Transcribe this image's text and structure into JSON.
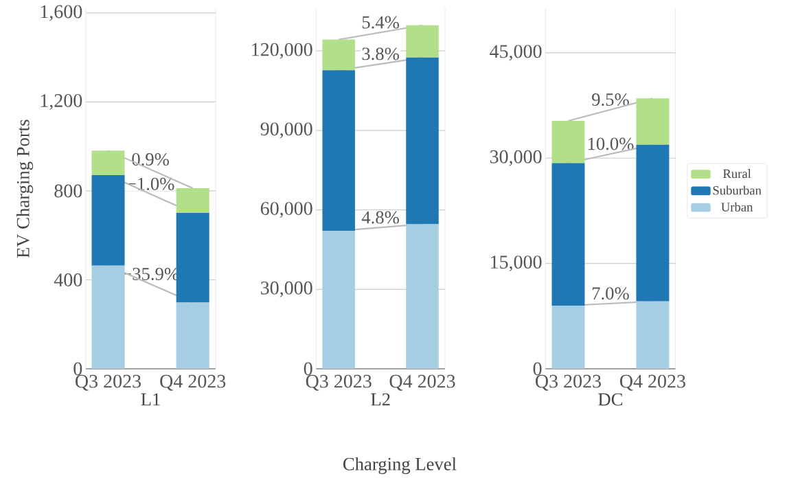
{
  "chart_data": [
    {
      "type": "bar",
      "stacked": true,
      "categories": [
        "Q3 2023",
        "Q4 2023"
      ],
      "xlabel": "L1",
      "ylabel": "EV Charging Ports",
      "ylim": [
        0,
        1620
      ],
      "yticks": [
        0,
        400,
        800,
        {
          "value": 1200,
          "label": "1,200"
        },
        {
          "value": 1600,
          "label": "1,600"
        }
      ],
      "grid": "y",
      "series": [
        {
          "color": "#a6cee3",
          "values": [
            464,
            298
          ]
        },
        {
          "color": "#1f78b4",
          "values": [
            407,
            403
          ]
        },
        {
          "color": "#b2df8a",
          "values": [
            110,
            111
          ]
        }
      ],
      "annotations": [
        "−35.9%",
        "−1.0%",
        "0.9%"
      ]
    },
    {
      "type": "bar",
      "stacked": true,
      "categories": [
        "Q3 2023",
        "Q4 2023"
      ],
      "xlabel": "L2",
      "ylim": [
        0,
        136000
      ],
      "yticks": [
        0,
        {
          "value": 30000,
          "label": "30,000"
        },
        {
          "value": 60000,
          "label": "60,000"
        },
        {
          "value": 90000,
          "label": "90,000"
        },
        {
          "value": 120000,
          "label": "120,000"
        }
      ],
      "grid": "y",
      "series": [
        {
          "color": "#a6cee3",
          "values": [
            52100,
            54600
          ]
        },
        {
          "color": "#1f78b4",
          "values": [
            60600,
            62900
          ]
        },
        {
          "color": "#b2df8a",
          "values": [
            11600,
            12200
          ]
        }
      ],
      "annotations": [
        "4.8%",
        "3.8%",
        "5.4%",
        "Charging Level"
      ]
    },
    {
      "type": "bar",
      "stacked": true,
      "categories": [
        "Q3 2023",
        "Q4 2023"
      ],
      "xlabel": "DC",
      "ylim": [
        0,
        51300
      ],
      "yticks": [
        0,
        {
          "value": 15000,
          "label": "15,000"
        },
        {
          "value": 30000,
          "label": "30,000"
        },
        {
          "value": 45000,
          "label": "45,000"
        }
      ],
      "grid": "y",
      "legend": "right",
      "series": [
        {
          "name": "Urban",
          "color": "#a6cee3",
          "values": [
            9000,
            9600
          ]
        },
        {
          "name": "Suburban",
          "color": "#1f78b4",
          "values": [
            20300,
            22300
          ]
        },
        {
          "name": "Rural",
          "color": "#b2df8a",
          "values": [
            6000,
            6600
          ]
        }
      ],
      "annotations": [
        "7.0%",
        "10.0%",
        "9.5%"
      ]
    }
  ]
}
